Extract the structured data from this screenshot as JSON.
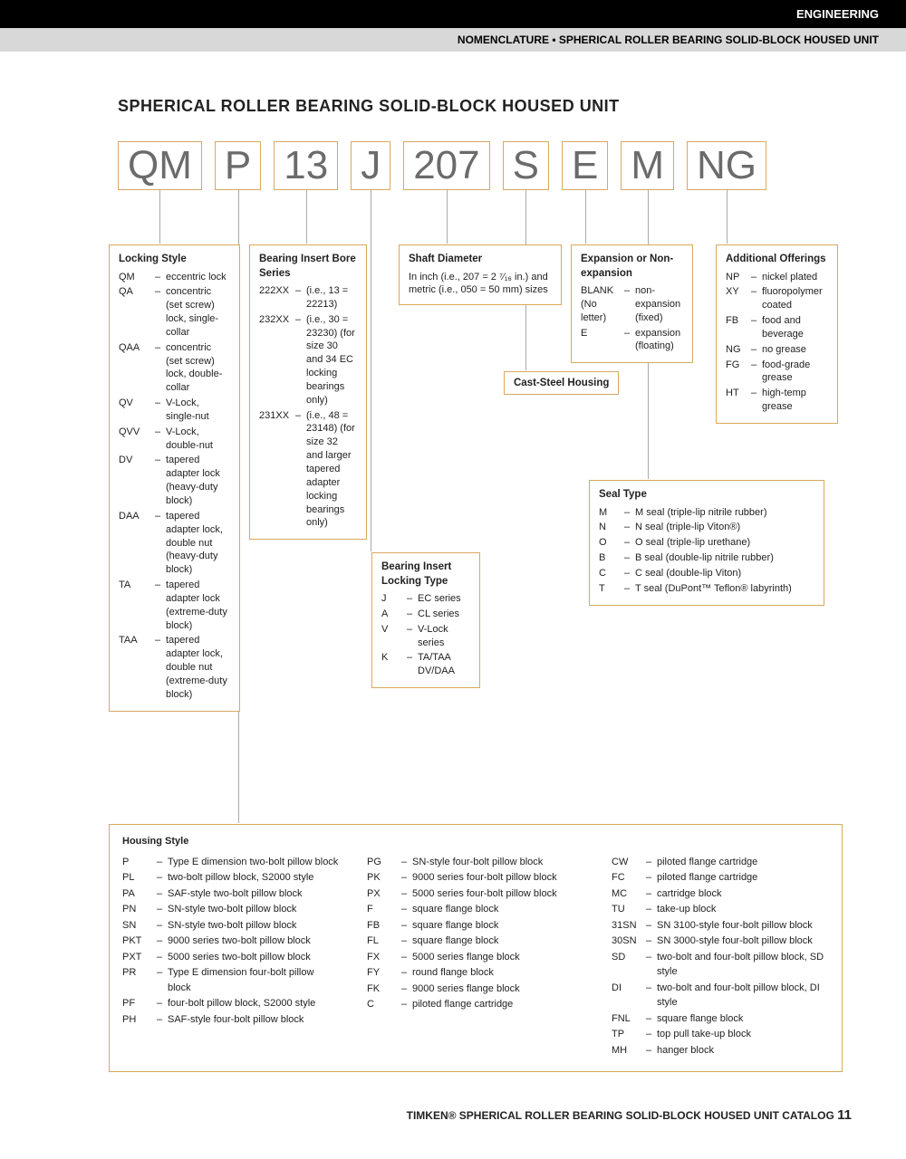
{
  "header": {
    "topbar": "ENGINEERING",
    "subbar": "NOMENCLATURE • SPHERICAL ROLLER BEARING SOLID-BLOCK HOUSED UNIT"
  },
  "title": "SPHERICAL ROLLER BEARING SOLID-BLOCK HOUSED UNIT",
  "code": [
    "QM",
    "P",
    "13",
    "J",
    "207",
    "S",
    "E",
    "M",
    "NG"
  ],
  "locking": {
    "title": "Locking Style",
    "items": [
      {
        "c": "QM",
        "d": "eccentric lock"
      },
      {
        "c": "QA",
        "d": "concentric (set screw) lock, single-collar"
      },
      {
        "c": "QAA",
        "d": "concentric (set screw) lock, double-collar"
      },
      {
        "c": "QV",
        "d": "V-Lock, single-nut"
      },
      {
        "c": "QVV",
        "d": "V-Lock, double-nut"
      },
      {
        "c": "DV",
        "d": "tapered adapter lock (heavy-duty block)"
      },
      {
        "c": "DAA",
        "d": "tapered adapter lock, double nut (heavy-duty block)"
      },
      {
        "c": "TA",
        "d": "tapered adapter lock (extreme-duty block)"
      },
      {
        "c": "TAA",
        "d": "tapered adapter lock, double nut (extreme-duty block)"
      }
    ]
  },
  "bore": {
    "title": "Bearing Insert Bore Series",
    "items": [
      {
        "c": "222XX",
        "d": "(i.e., 13 = 22213)"
      },
      {
        "c": "232XX",
        "d": "(i.e., 30 = 23230) (for size 30 and 34 EC locking bearings only)"
      },
      {
        "c": "231XX",
        "d": "(i.e., 48 = 23148) (for size 32 and larger tapered adapter locking bearings only)"
      }
    ]
  },
  "shaft": {
    "title": "Shaft Diameter",
    "text": "In inch (i.e., 207 = 2 ⁷⁄₁₆ in.) and metric (i.e., 050 = 50 mm) sizes"
  },
  "locktype": {
    "title": "Bearing Insert Locking Type",
    "items": [
      {
        "c": "J",
        "d": "EC series"
      },
      {
        "c": "A",
        "d": "CL series"
      },
      {
        "c": "V",
        "d": "V-Lock series"
      },
      {
        "c": "K",
        "d": "TA/TAA DV/DAA"
      }
    ]
  },
  "cast": "Cast-Steel Housing",
  "expansion": {
    "title": "Expansion or Non-expansion",
    "items": [
      {
        "c": "BLANK (No letter)",
        "d": "non-expansion (fixed)"
      },
      {
        "c": "E",
        "d": "expansion (floating)"
      }
    ]
  },
  "additional": {
    "title": "Additional Offerings",
    "items": [
      {
        "c": "NP",
        "d": "nickel plated"
      },
      {
        "c": "XY",
        "d": "fluoropolymer coated"
      },
      {
        "c": "FB",
        "d": "food and beverage"
      },
      {
        "c": "NG",
        "d": "no grease"
      },
      {
        "c": "FG",
        "d": "food-grade grease"
      },
      {
        "c": "HT",
        "d": "high-temp grease"
      }
    ]
  },
  "seal": {
    "title": "Seal Type",
    "items": [
      {
        "c": "M",
        "d": "M seal (triple-lip nitrile rubber)"
      },
      {
        "c": "N",
        "d": "N seal (triple-lip Viton®)"
      },
      {
        "c": "O",
        "d": "O seal (triple-lip urethane)"
      },
      {
        "c": "B",
        "d": "B seal (double-lip nitrile rubber)"
      },
      {
        "c": "C",
        "d": "C seal (double-lip Viton)"
      },
      {
        "c": "T",
        "d": "T seal (DuPont™ Teflon® labyrinth)"
      }
    ]
  },
  "housing": {
    "title": "Housing Style",
    "col1": [
      {
        "c": "P",
        "d": "Type E dimension two-bolt pillow block"
      },
      {
        "c": "PL",
        "d": "two-bolt pillow block, S2000 style"
      },
      {
        "c": "PA",
        "d": "SAF-style two-bolt pillow block"
      },
      {
        "c": "PN",
        "d": "SN-style two-bolt pillow block"
      },
      {
        "c": "SN",
        "d": "SN-style two-bolt pillow block"
      },
      {
        "c": "PKT",
        "d": "9000 series two-bolt pillow block"
      },
      {
        "c": "PXT",
        "d": "5000 series two-bolt pillow block"
      },
      {
        "c": "PR",
        "d": "Type E dimension four-bolt pillow block"
      },
      {
        "c": "PF",
        "d": "four-bolt pillow block, S2000 style"
      },
      {
        "c": "PH",
        "d": "SAF-style four-bolt pillow block"
      }
    ],
    "col2": [
      {
        "c": "PG",
        "d": "SN-style four-bolt pillow block"
      },
      {
        "c": "PK",
        "d": "9000 series four-bolt pillow block"
      },
      {
        "c": "PX",
        "d": "5000 series four-bolt pillow block"
      },
      {
        "c": "F",
        "d": "square flange block"
      },
      {
        "c": "FB",
        "d": "square flange block"
      },
      {
        "c": "FL",
        "d": "square flange block"
      },
      {
        "c": "FX",
        "d": "5000 series flange block"
      },
      {
        "c": "FY",
        "d": "round flange block"
      },
      {
        "c": "FK",
        "d": "9000 series flange block"
      },
      {
        "c": "C",
        "d": "piloted flange cartridge"
      }
    ],
    "col3": [
      {
        "c": "CW",
        "d": "piloted flange cartridge"
      },
      {
        "c": "FC",
        "d": "piloted flange cartridge"
      },
      {
        "c": "MC",
        "d": "cartridge block"
      },
      {
        "c": "TU",
        "d": "take-up block"
      },
      {
        "c": "31SN",
        "d": "SN 3100-style four-bolt pillow block"
      },
      {
        "c": "30SN",
        "d": "SN 3000-style four-bolt pillow block"
      },
      {
        "c": "SD",
        "d": "two-bolt and four-bolt pillow block, SD style"
      },
      {
        "c": "DI",
        "d": "two-bolt and four-bolt pillow block, DI style"
      },
      {
        "c": "FNL",
        "d": "square flange block"
      },
      {
        "c": "TP",
        "d": "top pull take-up block"
      },
      {
        "c": "MH",
        "d": "hanger block"
      }
    ]
  },
  "footer": {
    "text": "TIMKEN® SPHERICAL ROLLER BEARING SOLID-BLOCK HOUSED UNIT CATALOG",
    "page": "11"
  }
}
